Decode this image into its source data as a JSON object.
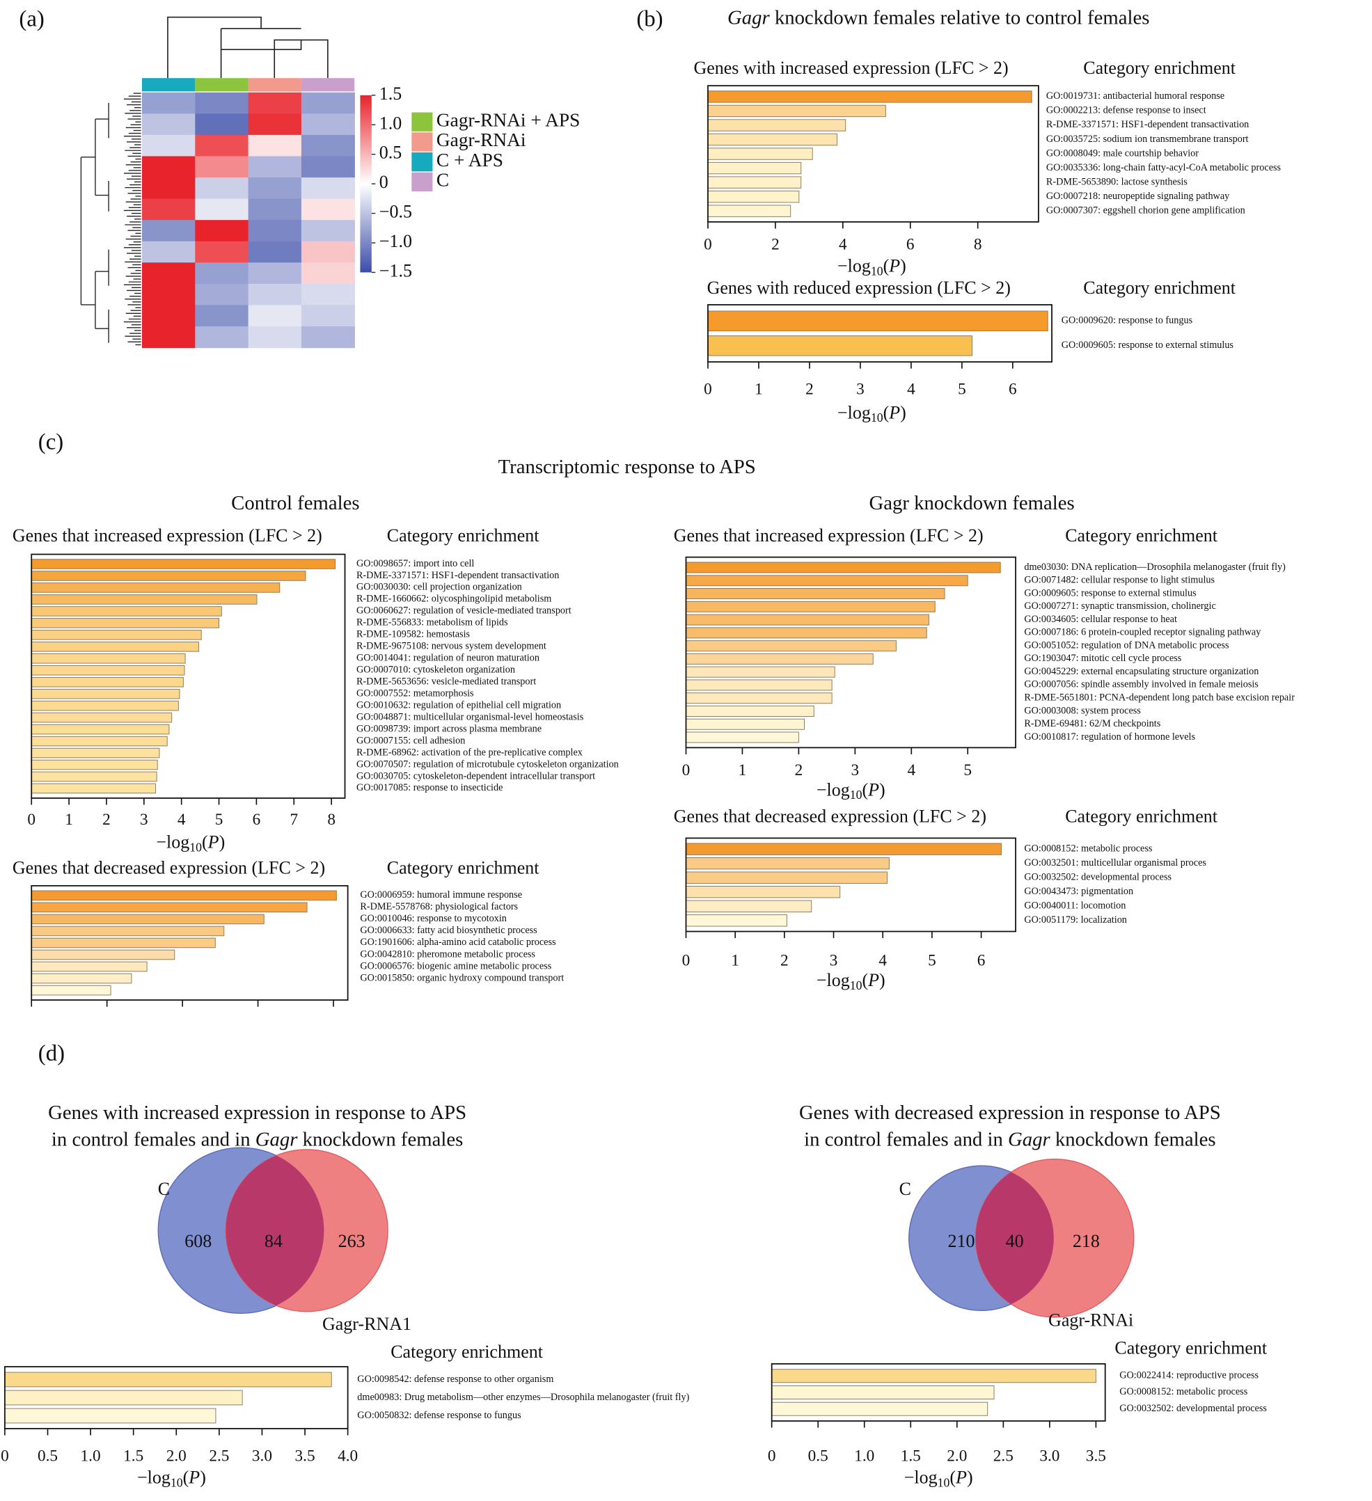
{
  "panel_labels": [
    "(a)",
    "(b)",
    "(c)",
    "(d)"
  ],
  "panel_b_title": [
    "Gagr",
    "knockdown females relative to control females"
  ],
  "panel_c_title": "Transcriptomic response to APS",
  "panel_c_subtitles": [
    "Control females",
    "Gagr knockdown females"
  ],
  "chart_data": [
    {
      "type": "heatmap",
      "series": [
        {
          "name": "Gagr-RNAi + APS",
          "color": "#8cc43e"
        },
        {
          "name": "Gagr-RNAi",
          "color": "#f29a8c"
        },
        {
          "name": "C + APS",
          "color": "#17a9bd"
        },
        {
          "name": "C",
          "color": "#c9a0cc"
        }
      ],
      "column_order": [
        "C + APS",
        "Gagr-RNAi + APS",
        "Gagr-RNAi",
        "C"
      ],
      "values": [
        [
          -0.8,
          -1.0,
          1.3,
          -0.8
        ],
        [
          -0.5,
          -1.2,
          1.4,
          -0.6
        ],
        [
          -0.3,
          1.2,
          0.2,
          -0.9
        ],
        [
          1.5,
          0.8,
          -0.6,
          -1.0
        ],
        [
          1.5,
          -0.4,
          -0.8,
          -0.3
        ],
        [
          1.3,
          -0.2,
          -0.9,
          0.2
        ],
        [
          -0.9,
          1.5,
          -1.0,
          -0.5
        ],
        [
          -0.5,
          1.2,
          -1.1,
          0.4
        ],
        [
          1.5,
          -0.8,
          -0.6,
          0.3
        ],
        [
          1.5,
          -0.7,
          -0.4,
          -0.3
        ],
        [
          1.5,
          -0.9,
          -0.2,
          -0.4
        ],
        [
          1.5,
          -0.6,
          -0.3,
          -0.6
        ]
      ],
      "clim": [
        -1.5,
        1.5
      ],
      "colors": [
        "#3b4ca8",
        "#ffffff",
        "#e8232b"
      ],
      "cticks": [
        1.5,
        {
          "value": 1.0,
          "label": "1.0"
        },
        0.5,
        0,
        {
          "value": -0.5,
          "label": "−0.5"
        },
        {
          "value": -1.0,
          "label": "−1.0"
        },
        {
          "value": -1.5,
          "label": "−1.5"
        }
      ]
    },
    {
      "type": "bar",
      "title": "Genes with increased expression (LFC > 2)",
      "label_title": "Category enrichment",
      "x_label": [
        "−log",
        "10",
        "(",
        "P",
        ")"
      ],
      "categories": [
        "GO:0019731: antibacterial humoral response",
        "GO:0002213: defense response to insect",
        "R-DME-3371571: HSF1-dependent transactivation",
        "GO:0035725: sodium ion transmembrane transport",
        "GO:0008049: male courtship behavior",
        "GO:0035336: long-chain fatty-acyl-CoA metabolic process",
        "R-DME-5653890: lactose synthesis",
        "GO:0007218: neuropeptide signaling pathway",
        "GO:0007307: eggshell chorion gene amplification"
      ],
      "values": [
        9.6,
        5.27,
        4.08,
        3.83,
        3.1,
        2.76,
        2.76,
        2.7,
        2.45
      ],
      "xlim": [
        0,
        9.8
      ],
      "xticks": [
        0,
        2,
        4,
        6,
        8
      ],
      "colors": [
        "#fff6cf",
        "#f59a2c"
      ]
    },
    {
      "type": "bar",
      "title": "Genes with reduced expression (LFC > 2)",
      "label_title": "Category enrichment",
      "x_label": [
        "−log",
        "10",
        "(",
        "P",
        ")"
      ],
      "categories": [
        "GO:0009620: response to fungus",
        "GO:0009605: response to external stimulus"
      ],
      "values": [
        6.69,
        5.2
      ],
      "xlim": [
        0,
        6.77
      ],
      "xticks": [
        0,
        1,
        2,
        3,
        4,
        5,
        6
      ],
      "colors": [
        "#f8c050",
        "#f59a2c"
      ]
    },
    {
      "type": "bar",
      "title": "Genes that increased expression (LFC > 2)",
      "label_title": "Category enrichment",
      "x_label": [
        "−log",
        "10",
        "(",
        "P",
        ")"
      ],
      "categories": [
        "GO:0098657: import into cell",
        "R-DME-3371571: HSF1-dependent transactivation",
        "GO:0030030: cell projection organization",
        "R-DME-1660662: olycosphingolipid metabolism",
        "GO:0060627: regulation of vesicle-mediated transport",
        "R-DME-556833: metabolism of lipids",
        "R-DME-109582: hemostasis",
        "R-DME-9675108: nervous system development",
        "GO:0014041: regulation of neuron maturation",
        "GO:0007010: cytoskeleton organization",
        "R-DME-5653656: vesicle-mediated transport",
        "GO:0007552: metamorphosis",
        "GO:0010632: regulation of epithelial cell migration",
        "GO:0048871: multicellular organismal-level homeostasis",
        "GO:0098739: import across plasma membrane",
        "GO:0007155: cell adhesion",
        "R-DME-68962: activation of the pre-replicative complex",
        "GO:0070507: regulation of microtubule cytoskeleton organization",
        "GO:0030705: cytoskeleton-dependent intracellular transport",
        "GO:0017085: response to insecticide"
      ],
      "values": [
        8.1,
        7.31,
        6.62,
        6.01,
        5.07,
        5.0,
        4.53,
        4.46,
        4.1,
        4.08,
        4.05,
        3.95,
        3.92,
        3.74,
        3.67,
        3.62,
        3.41,
        3.36,
        3.34,
        3.31
      ],
      "xlim": [
        0,
        8.36
      ],
      "xticks": [
        0,
        1,
        2,
        3,
        4,
        5,
        6,
        7,
        8
      ],
      "colors": [
        "#fde3a0",
        "#f59a2c"
      ]
    },
    {
      "type": "bar",
      "title": "Genes that decreased expression (LFC > 2)",
      "label_title": "Category enrichment",
      "categories": [
        "GO:0006959: humoral immune response",
        "R-DME-5578768: physiological factors",
        "GO:0010046: response to mycotoxin",
        "GO:0006633: fatty acid biosynthetic process",
        "GO:1901606: alpha-amino acid catabolic process",
        "GO:0042810: pheromone metabolic process",
        "GO:0006576: biogenic amine metabolic process",
        "GO:0015850: organic hydroxy compound transport",
        null
      ],
      "values": [
        8.08,
        7.3,
        6.16,
        5.1,
        4.87,
        3.79,
        3.06,
        2.65,
        2.1
      ],
      "xlim": [
        0,
        8.38
      ],
      "xticks": [
        0,
        2,
        4,
        6,
        8
      ],
      "tick_labels": false,
      "colors": [
        "#fff8d8",
        "#f59a2c"
      ]
    },
    {
      "type": "bar",
      "title": "Genes that increased expression (LFC > 2)",
      "label_title": "Category enrichment",
      "x_label": [
        "−log",
        "10",
        "(",
        "P",
        ")"
      ],
      "categories": [
        "dme03030: DNA replication—Drosophila melanogaster (fruit fly)",
        "GO:0071482: cellular response to light stimulus",
        "GO:0009605: response to external stimulus",
        "GO:0007271: synaptic transmission, cholinergic",
        "GO:0034605: cellular response to heat",
        "GO:0007186: 6 protein-coupled receptor signaling pathway",
        "GO:0051052: regulation of DNA metabolic process",
        "GO:1903047: mitotic cell cycle process",
        "GO:0045229: external encapsulating structure organization",
        "GO:0007056: spindle assembly involved in female meiosis",
        "R-DME-5651801: PCNA-dependent long patch base excision repair",
        "GO:0003008: system process",
        "R-DME-69481: 62/M checkpoints",
        "GO:0010817: regulation of hormone levels"
      ],
      "values": [
        5.58,
        5.0,
        4.59,
        4.42,
        4.31,
        4.27,
        3.73,
        3.32,
        2.64,
        2.59,
        2.59,
        2.27,
        2.1,
        2.0
      ],
      "xlim": [
        0,
        5.85
      ],
      "xticks": [
        0,
        1,
        2,
        3,
        4,
        5
      ],
      "colors": [
        "#fff8d8",
        "#f59a2c"
      ]
    },
    {
      "type": "bar",
      "title": "Genes that decreased expression (LFC > 2)",
      "label_title": "Category enrichment",
      "x_label": [
        "−log",
        "10",
        "(",
        "P",
        ")"
      ],
      "categories": [
        "GO:0008152: metabolic process",
        "GO:0032501: multicellular organismal proces",
        "GO:0032502: developmental process",
        "GO:0043473: pigmentation",
        "GO:0040011: locomotion",
        "GO:0051179: localization"
      ],
      "values": [
        6.41,
        4.13,
        4.09,
        3.13,
        2.55,
        2.05
      ],
      "xlim": [
        0,
        6.7
      ],
      "xticks": [
        0,
        1,
        2,
        3,
        4,
        5,
        6
      ],
      "colors": [
        "#fff8d8",
        "#f59a2c"
      ]
    },
    {
      "type": "venn",
      "title": "Genes with increased expression in response to APS",
      "title_line2": [
        "in control females and in",
        "Gagr",
        "knockdown females"
      ],
      "sets": [
        "C",
        "Gagr-RNA1"
      ],
      "values": [
        608,
        84,
        263
      ],
      "colors": [
        "#7f8fd0",
        "#ef8082",
        "#b8386a"
      ]
    },
    {
      "type": "bar",
      "label_title": "Category enrichment",
      "x_label": [
        "−log",
        "10",
        "(",
        "P",
        ")"
      ],
      "categories": [
        "GO:0098542: defense response to other organism",
        "dme00983: Drug metabolism—other enzymes—Drosophila melanogaster (fruit fly)",
        "GO:0050832: defense response to fungus"
      ],
      "values": [
        3.81,
        2.77,
        2.46
      ],
      "xlim": [
        0,
        4.0
      ],
      "xticks": [
        0,
        0.5,
        {
          "value": 1,
          "label": "1.0"
        },
        1.5,
        {
          "value": 2,
          "label": "2.0"
        },
        2.5,
        {
          "value": 3,
          "label": "3.0"
        },
        3.5,
        {
          "value": 4,
          "label": "4.0"
        }
      ],
      "colors": [
        "#fff8d8",
        "#fbd98a"
      ]
    },
    {
      "type": "venn",
      "title": "Genes with decreased expression in response to APS",
      "title_line2": [
        "in control females and in",
        "Gagr",
        "knockdown females"
      ],
      "sets": [
        "C",
        "Gagr-RNAi"
      ],
      "values": [
        210,
        40,
        218
      ],
      "colors": [
        "#7f8fd0",
        "#ef8082",
        "#b8386a"
      ]
    },
    {
      "type": "bar",
      "label_title": "Category enrichment",
      "x_label": [
        "−log",
        "10",
        "(",
        "P",
        ")"
      ],
      "categories": [
        "GO:0022414: reproductive process",
        "GO:0008152: metabolic process",
        "GO:0032502: developmental process"
      ],
      "values": [
        3.5,
        2.4,
        2.33
      ],
      "xlim": [
        0,
        3.6
      ],
      "xticks": [
        0,
        0.5,
        {
          "value": 1,
          "label": "1.0"
        },
        1.5,
        {
          "value": 2,
          "label": "2.0"
        },
        2.5,
        {
          "value": 3,
          "label": "3.0"
        },
        3.5
      ],
      "colors": [
        "#fff8d8",
        "#fbd98a"
      ]
    }
  ]
}
